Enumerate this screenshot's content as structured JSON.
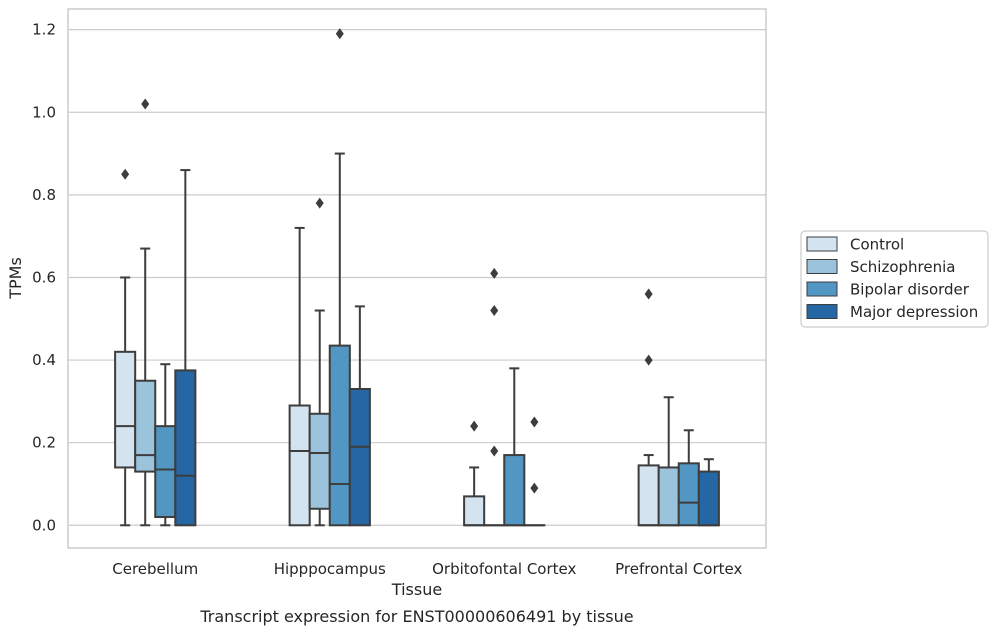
{
  "chart_data": {
    "type": "box",
    "title": "Transcript expression for ENST00000606491 by tissue",
    "xlabel": "Tissue",
    "ylabel": "TPMs",
    "ylim": [
      -0.055,
      1.25
    ],
    "yticks": [
      0.0,
      0.2,
      0.4,
      0.6,
      0.8,
      1.0,
      1.2
    ],
    "ytick_labels": [
      "0.0",
      "0.2",
      "0.4",
      "0.6",
      "0.8",
      "1.0",
      "1.2"
    ],
    "grid": "horizontal",
    "legend_position": "right",
    "categories": [
      "Cerebellum",
      "Hipppocampus",
      "Orbitofontal Cortex",
      "Prefrontal Cortex"
    ],
    "series": [
      {
        "name": "Control",
        "color": "#d3e3f0",
        "boxes": [
          {
            "whislo": 0.0,
            "q1": 0.14,
            "med": 0.24,
            "q3": 0.42,
            "whishi": 0.6,
            "fliers": [
              0.85
            ]
          },
          {
            "whislo": 0.0,
            "q1": 0.0,
            "med": 0.18,
            "q3": 0.29,
            "whishi": 0.72,
            "fliers": []
          },
          {
            "whislo": 0.0,
            "q1": 0.0,
            "med": 0.0,
            "q3": 0.07,
            "whishi": 0.14,
            "fliers": [
              0.24
            ]
          },
          {
            "whislo": 0.0,
            "q1": 0.0,
            "med": 0.0,
            "q3": 0.145,
            "whishi": 0.17,
            "fliers": [
              0.4,
              0.56
            ]
          }
        ]
      },
      {
        "name": "Schizophrenia",
        "color": "#9cc3dc",
        "boxes": [
          {
            "whislo": 0.0,
            "q1": 0.13,
            "med": 0.17,
            "q3": 0.35,
            "whishi": 0.67,
            "fliers": [
              1.02
            ]
          },
          {
            "whislo": 0.0,
            "q1": 0.04,
            "med": 0.175,
            "q3": 0.27,
            "whishi": 0.52,
            "fliers": [
              0.78
            ]
          },
          {
            "whislo": 0.0,
            "q1": 0.0,
            "med": 0.0,
            "q3": 0.0,
            "whishi": 0.0,
            "fliers": [
              0.18,
              0.52,
              0.61
            ]
          },
          {
            "whislo": 0.0,
            "q1": 0.0,
            "med": 0.0,
            "q3": 0.14,
            "whishi": 0.31,
            "fliers": []
          }
        ]
      },
      {
        "name": "Bipolar disorder",
        "color": "#5296c3",
        "boxes": [
          {
            "whislo": 0.0,
            "q1": 0.02,
            "med": 0.135,
            "q3": 0.24,
            "whishi": 0.39,
            "fliers": []
          },
          {
            "whislo": 0.0,
            "q1": 0.0,
            "med": 0.1,
            "q3": 0.435,
            "whishi": 0.9,
            "fliers": [
              1.19
            ]
          },
          {
            "whislo": 0.0,
            "q1": 0.0,
            "med": 0.0,
            "q3": 0.17,
            "whishi": 0.38,
            "fliers": []
          },
          {
            "whislo": 0.0,
            "q1": 0.0,
            "med": 0.055,
            "q3": 0.15,
            "whishi": 0.23,
            "fliers": []
          }
        ]
      },
      {
        "name": "Major depression",
        "color": "#2566a4",
        "boxes": [
          {
            "whislo": 0.0,
            "q1": 0.0,
            "med": 0.12,
            "q3": 0.375,
            "whishi": 0.86,
            "fliers": []
          },
          {
            "whislo": 0.0,
            "q1": 0.0,
            "med": 0.19,
            "q3": 0.33,
            "whishi": 0.53,
            "fliers": []
          },
          {
            "whislo": 0.0,
            "q1": 0.0,
            "med": 0.0,
            "q3": 0.0,
            "whishi": 0.0,
            "fliers": [
              0.09,
              0.25
            ]
          },
          {
            "whislo": 0.0,
            "q1": 0.0,
            "med": 0.0,
            "q3": 0.13,
            "whishi": 0.16,
            "fliers": []
          }
        ]
      }
    ]
  }
}
